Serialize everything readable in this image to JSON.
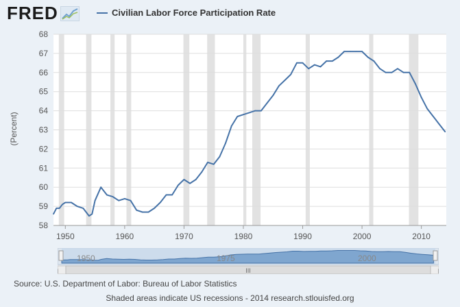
{
  "header": {
    "logo_text": "FRED",
    "logo_icon": "chart-line-icon",
    "legend_label": "Civilian Labor Force Participation Rate",
    "series_color": "#4572a7"
  },
  "colors": {
    "background": "#ebf1f7",
    "plot_background": "#ffffff",
    "recession_band": "#e2e2e2",
    "line": "#4572a7"
  },
  "footer": {
    "source": "Source: U.S. Department of Labor: Bureau of Labor Statistics",
    "note": "Shaded areas indicate US recessions - 2014 research.stlouisfed.org"
  },
  "navigator": {
    "labels": [
      "1950",
      "1975",
      "2000"
    ],
    "scrollbar_grip": "III"
  },
  "chart_data": {
    "type": "line",
    "title": "Civilian Labor Force Participation Rate",
    "xlabel": "",
    "ylabel": "(Percent)",
    "xlim": [
      1948,
      2014.2
    ],
    "ylim": [
      58,
      68
    ],
    "yticks": [
      58,
      59,
      60,
      61,
      62,
      63,
      64,
      65,
      66,
      67,
      68
    ],
    "xticks": [
      1950,
      1960,
      1970,
      1980,
      1990,
      2000,
      2010
    ],
    "grid": true,
    "legend": "top",
    "recessions": [
      [
        1948.9,
        1949.8
      ],
      [
        1953.5,
        1954.4
      ],
      [
        1957.6,
        1958.3
      ],
      [
        1960.3,
        1961.1
      ],
      [
        1969.9,
        1970.9
      ],
      [
        1973.9,
        1975.2
      ],
      [
        1980.0,
        1980.5
      ],
      [
        1981.5,
        1982.9
      ],
      [
        1990.5,
        1991.2
      ],
      [
        2001.2,
        2001.9
      ],
      [
        2007.9,
        2009.5
      ]
    ],
    "series": [
      {
        "x": [
          1948.0,
          1948.5,
          1949.0,
          1949.5,
          1950.0,
          1951.0,
          1952.0,
          1953.0,
          1953.5,
          1954.0,
          1954.5,
          1955.0,
          1956.0,
          1957.0,
          1958.0,
          1959.0,
          1960.0,
          1961.0,
          1962.0,
          1963.0,
          1964.0,
          1965.0,
          1966.0,
          1967.0,
          1968.0,
          1969.0,
          1970.0,
          1971.0,
          1972.0,
          1973.0,
          1974.0,
          1975.0,
          1976.0,
          1977.0,
          1978.0,
          1979.0,
          1980.0,
          1981.0,
          1982.0,
          1983.0,
          1984.0,
          1985.0,
          1986.0,
          1987.0,
          1988.0,
          1989.0,
          1990.0,
          1991.0,
          1992.0,
          1993.0,
          1994.0,
          1995.0,
          1996.0,
          1997.0,
          1998.0,
          1999.0,
          2000.0,
          2001.0,
          2002.0,
          2003.0,
          2004.0,
          2005.0,
          2006.0,
          2007.0,
          2008.0,
          2009.0,
          2010.0,
          2011.0,
          2012.0,
          2013.0,
          2014.0
        ],
        "y": [
          58.6,
          58.9,
          58.9,
          59.1,
          59.2,
          59.2,
          59.0,
          58.9,
          58.7,
          58.5,
          58.6,
          59.3,
          60.0,
          59.6,
          59.5,
          59.3,
          59.4,
          59.3,
          58.8,
          58.7,
          58.7,
          58.9,
          59.2,
          59.6,
          59.6,
          60.1,
          60.4,
          60.2,
          60.4,
          60.8,
          61.3,
          61.2,
          61.6,
          62.3,
          63.2,
          63.7,
          63.8,
          63.9,
          64.0,
          64.0,
          64.4,
          64.8,
          65.3,
          65.6,
          65.9,
          66.5,
          66.5,
          66.2,
          66.4,
          66.3,
          66.6,
          66.6,
          66.8,
          67.1,
          67.1,
          67.1,
          67.1,
          66.8,
          66.6,
          66.2,
          66.0,
          66.0,
          66.2,
          66.0,
          66.0,
          65.4,
          64.7,
          64.1,
          63.7,
          63.3,
          62.9
        ]
      }
    ]
  }
}
